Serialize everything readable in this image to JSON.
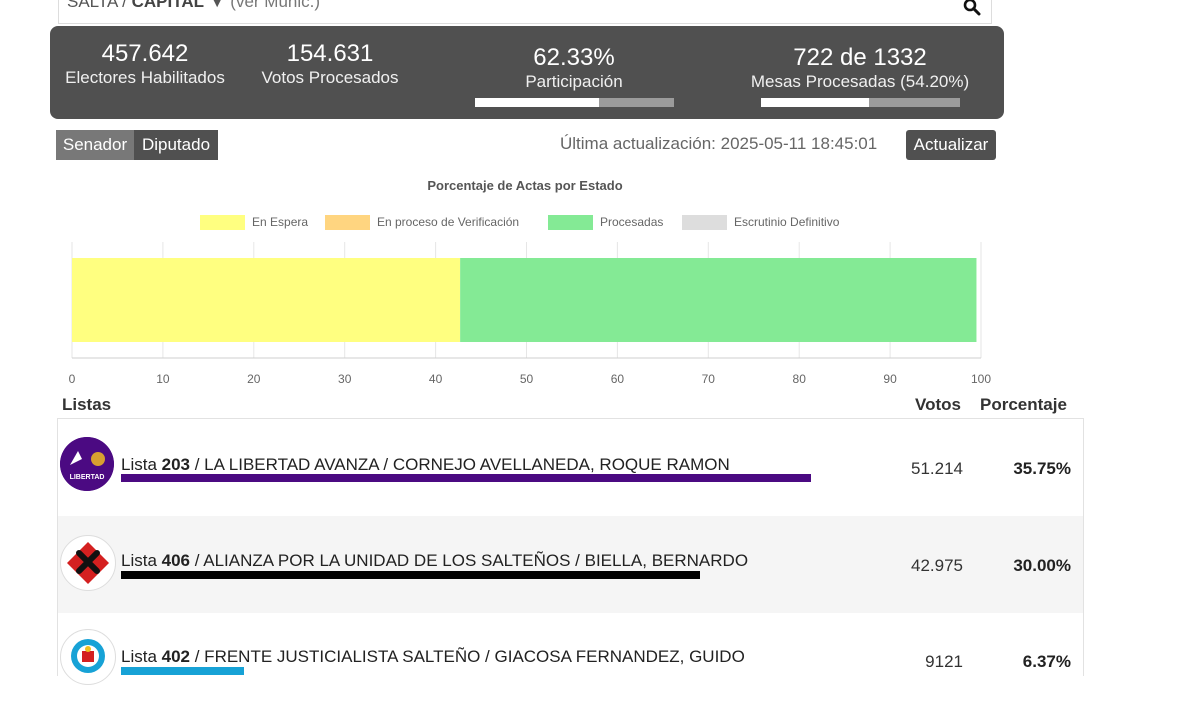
{
  "search": {
    "province": "SALTA",
    "separator": " / ",
    "department": "CAPITAL",
    "arrow": "▼",
    "municipality_link": "(ver Munic.)"
  },
  "stats": {
    "electors_value": "457.642",
    "electors_label": "Electores Habilitados",
    "votes_value": "154.631",
    "votes_label": "Votos Procesados",
    "participation_value": "62.33%",
    "participation_label": "Participación",
    "participation_fraction": 0.6233,
    "tables_value": "722 de 1332",
    "tables_label": "Mesas Procesadas (54.20%)",
    "tables_fraction": 0.542
  },
  "tabs": {
    "senador": "Senador",
    "diputado": "Diputado"
  },
  "update": {
    "label": "Última actualización: 2025-05-11 18:45:01",
    "button": "Actualizar"
  },
  "chart_data": {
    "type": "bar",
    "orientation": "horizontal-stacked",
    "title": "Porcentaje de Actas por Estado",
    "series": [
      {
        "name": "En Espera",
        "value": 42.7,
        "color": "#ffff80"
      },
      {
        "name": "En proceso de Verificación",
        "value": 0,
        "color": "#ffd580"
      },
      {
        "name": "Procesadas",
        "value": 56.8,
        "color": "#84ea95"
      },
      {
        "name": "Escrutinio Definitivo",
        "value": 0,
        "color": "#dddddd"
      }
    ],
    "xlim": [
      0,
      100
    ],
    "xticks": [
      0,
      10,
      20,
      30,
      40,
      50,
      60,
      70,
      80,
      90,
      100
    ],
    "legend_position": "top",
    "grid": true
  },
  "table": {
    "headers": {
      "lists": "Listas",
      "votes": "Votos",
      "percent": "Porcentaje"
    },
    "rows": [
      {
        "prefix": "Lista ",
        "number": "203",
        "desc": " / LA LIBERTAD AVANZA / CORNEJO AVELLANEDA, ROQUE RAMON",
        "votes": "51.214",
        "percent": "35.75%",
        "percent_value": 35.75,
        "color": "#4b0a82",
        "logo_text": "LA LIBERTAD AVANZA"
      },
      {
        "prefix": "Lista ",
        "number": "406",
        "desc": " / ALIANZA POR LA UNIDAD DE LOS SALTEÑOS / BIELLA, BERNARDO",
        "votes": "42.975",
        "percent": "30.00%",
        "percent_value": 30.0,
        "color": "#000000",
        "logo_text": ""
      },
      {
        "prefix": "Lista ",
        "number": "402",
        "desc": " / FRENTE JUSTICIALISTA SALTEÑO / GIACOSA FERNANDEZ, GUIDO",
        "votes": "9121",
        "percent": "6.37%",
        "percent_value": 6.37,
        "color": "#17a2d6",
        "logo_text": ""
      }
    ]
  }
}
